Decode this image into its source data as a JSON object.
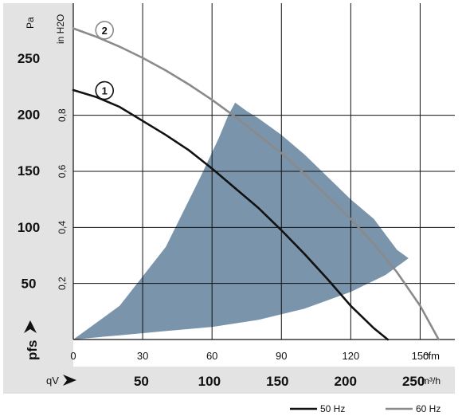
{
  "chart_data": {
    "type": "line",
    "y_unit_main": "Pa",
    "y_unit_secondary": "in H2O",
    "x_unit_top": "cfm",
    "x_unit_bottom": "m³/h",
    "y_axis_symbol": "pfs",
    "x_axis_symbol": "qV",
    "y_ticks_pa": [
      50,
      100,
      150,
      200,
      250
    ],
    "y_ticks_inh2o": [
      "0,2",
      "0,4",
      "0,6",
      "0,8"
    ],
    "x_ticks_cfm": [
      0,
      30,
      60,
      90,
      120,
      150
    ],
    "x_ticks_m3h": [
      50,
      100,
      150,
      200,
      250
    ],
    "xlim_cfm": [
      0,
      165
    ],
    "ylim_inh2o": [
      0,
      1.2
    ],
    "series": [
      {
        "name": "50 Hz",
        "marker": "1",
        "color": "#111111",
        "x_cfm": [
          0,
          10,
          20,
          30,
          40,
          50,
          60,
          70,
          80,
          90,
          100,
          110,
          120,
          130,
          136
        ],
        "y_inh2o": [
          0.89,
          0.865,
          0.83,
          0.78,
          0.73,
          0.675,
          0.61,
          0.54,
          0.47,
          0.39,
          0.305,
          0.215,
          0.12,
          0.04,
          0.0
        ]
      },
      {
        "name": "60 Hz",
        "marker": "2",
        "color": "#8a8a8a",
        "x_cfm": [
          0,
          10,
          20,
          30,
          40,
          50,
          60,
          70,
          80,
          90,
          100,
          110,
          120,
          130,
          140,
          150,
          158
        ],
        "y_inh2o": [
          1.11,
          1.08,
          1.045,
          1.005,
          0.96,
          0.91,
          0.855,
          0.795,
          0.73,
          0.665,
          0.59,
          0.51,
          0.43,
          0.34,
          0.24,
          0.12,
          0.0
        ]
      }
    ],
    "operating_region": {
      "color": "#7a94ab",
      "boundary_x_cfm": [
        0,
        20,
        40,
        55,
        63,
        67,
        70,
        75,
        80,
        90,
        100,
        110,
        120,
        130,
        140,
        145,
        135,
        120,
        100,
        80,
        60,
        40,
        20,
        0
      ],
      "boundary_y_inh2o": [
        0.0,
        0.12,
        0.33,
        0.58,
        0.72,
        0.8,
        0.845,
        0.815,
        0.79,
        0.73,
        0.66,
        0.58,
        0.5,
        0.43,
        0.32,
        0.29,
        0.23,
        0.17,
        0.11,
        0.07,
        0.045,
        0.03,
        0.015,
        0.0
      ]
    },
    "grid": true,
    "legend": "bottom-right"
  }
}
